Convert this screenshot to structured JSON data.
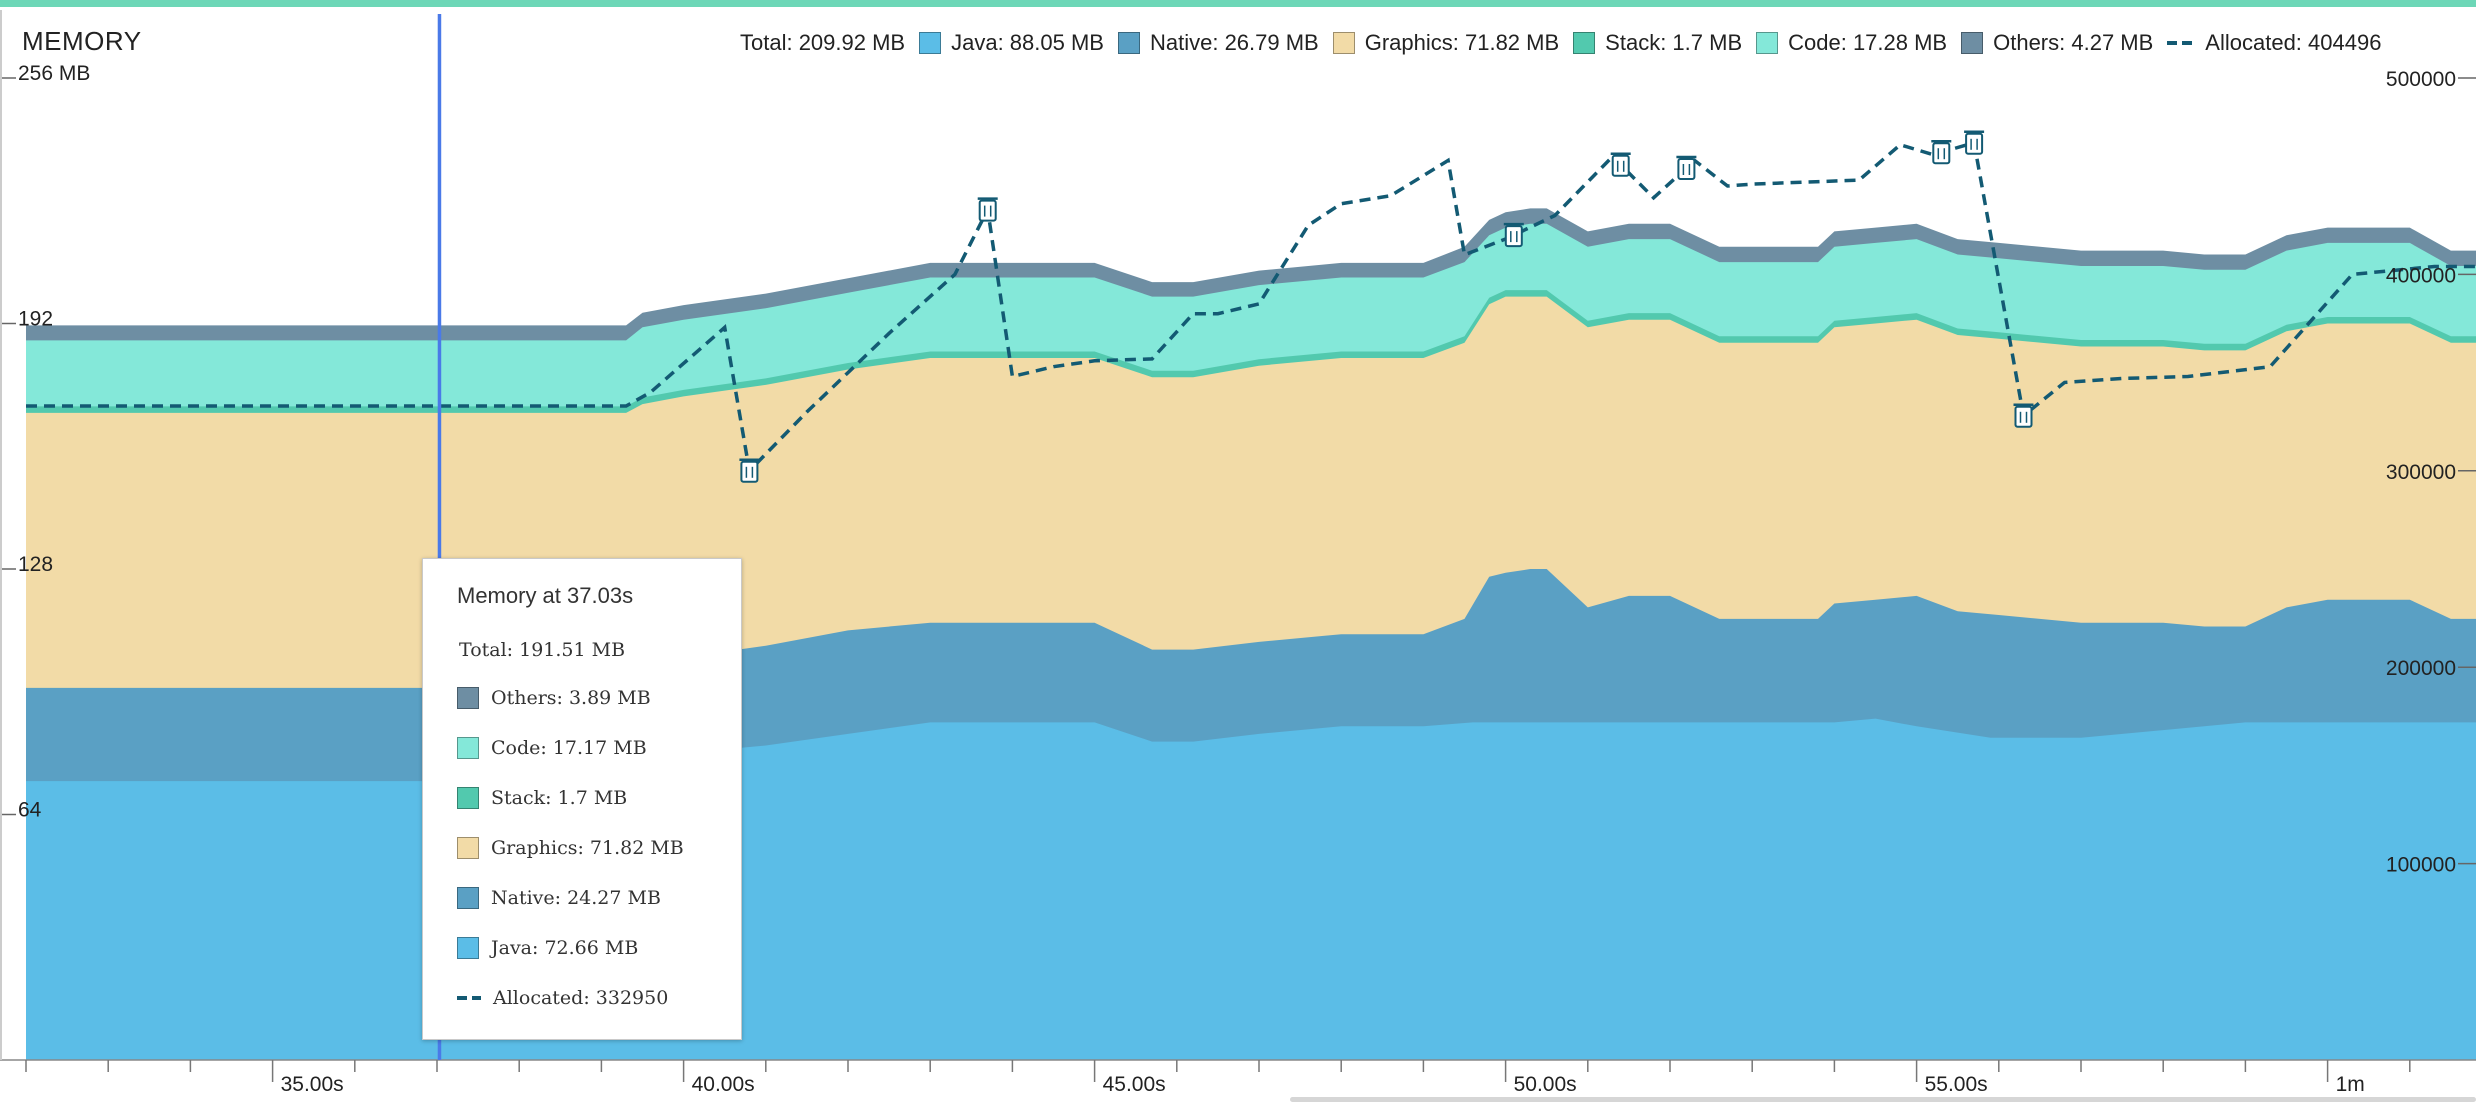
{
  "monitor": {
    "title": "MEMORY"
  },
  "legend": {
    "total": "Total: 209.92 MB",
    "items": [
      {
        "key": "java",
        "text": "Java: 88.05 MB",
        "color": "#5bbde7"
      },
      {
        "key": "native",
        "text": "Native: 26.79 MB",
        "color": "#5aa0c4"
      },
      {
        "key": "graphics",
        "text": "Graphics: 71.82 MB",
        "color": "#f2dba7"
      },
      {
        "key": "stack",
        "text": "Stack:  1.7 MB",
        "color": "#52c9ae"
      },
      {
        "key": "code",
        "text": "Code: 17.28 MB",
        "color": "#84e8d9"
      },
      {
        "key": "others",
        "text": "Others: 4.27 MB",
        "color": "#6e8ea3"
      }
    ],
    "allocated": "Allocated: 404496"
  },
  "tooltip": {
    "title": "Memory at 37.03s",
    "total": "Total: 191.51 MB",
    "items": [
      {
        "text": "Others: 3.89 MB",
        "color": "#6e8ea3"
      },
      {
        "text": "Code: 17.17 MB",
        "color": "#84e8d9"
      },
      {
        "text": "Stack: 1.7 MB",
        "color": "#52c9ae"
      },
      {
        "text": "Graphics: 71.82 MB",
        "color": "#f2dba7"
      },
      {
        "text": "Native: 24.27 MB",
        "color": "#5aa0c4"
      },
      {
        "text": "Java: 72.66 MB",
        "color": "#5bbde7"
      }
    ],
    "allocated": "Allocated: 332950"
  },
  "chart_data": {
    "type": "area",
    "x_unit": "s",
    "xlim": [
      32.0,
      62.0
    ],
    "ylim_mb": [
      0,
      256
    ],
    "ylim_alloc": [
      0,
      500000
    ],
    "left_ticks": [
      {
        "v": 256,
        "label": "256 MB"
      },
      {
        "v": 192,
        "label": "192"
      },
      {
        "v": 128,
        "label": "128"
      },
      {
        "v": 64,
        "label": "64"
      }
    ],
    "right_ticks": [
      {
        "v": 500000,
        "label": "500000"
      },
      {
        "v": 400000,
        "label": "400000"
      },
      {
        "v": 300000,
        "label": "300000"
      },
      {
        "v": 200000,
        "label": "200000"
      },
      {
        "v": 100000,
        "label": "100000"
      }
    ],
    "x_ticks": [
      {
        "v": 35,
        "label": "35.00s"
      },
      {
        "v": 40,
        "label": "40.00s"
      },
      {
        "v": 45,
        "label": "45.00s"
      },
      {
        "v": 50,
        "label": "50.00s"
      },
      {
        "v": 55,
        "label": "55.00s"
      },
      {
        "v": 60,
        "label": "1m"
      }
    ],
    "cursor_x": 37.03,
    "series": [
      {
        "name": "Java",
        "color": "#5bbde7",
        "points": [
          [
            32,
            72.7
          ],
          [
            39.3,
            72.7
          ],
          [
            39.5,
            79
          ],
          [
            40,
            80
          ],
          [
            41,
            82
          ],
          [
            42,
            85
          ],
          [
            43,
            88
          ],
          [
            44,
            88
          ],
          [
            45,
            88
          ],
          [
            45.7,
            83
          ],
          [
            46.2,
            83
          ],
          [
            47,
            85
          ],
          [
            48,
            87
          ],
          [
            49,
            87
          ],
          [
            49.6,
            88
          ],
          [
            50,
            88
          ],
          [
            51,
            88
          ],
          [
            52,
            88
          ],
          [
            53,
            88
          ],
          [
            54,
            88
          ],
          [
            54.5,
            89
          ],
          [
            55,
            87
          ],
          [
            55.9,
            84
          ],
          [
            57,
            84
          ],
          [
            58,
            86
          ],
          [
            59,
            88
          ],
          [
            60,
            88
          ],
          [
            61,
            88
          ],
          [
            62,
            88
          ]
        ]
      },
      {
        "name": "Native",
        "color": "#5aa0c4",
        "points": [
          [
            32,
            97
          ],
          [
            39.3,
            97
          ],
          [
            39.5,
            104
          ],
          [
            40,
            105
          ],
          [
            41,
            108
          ],
          [
            42,
            112
          ],
          [
            43,
            114
          ],
          [
            44,
            114
          ],
          [
            45,
            114
          ],
          [
            45.7,
            107
          ],
          [
            46.2,
            107
          ],
          [
            47,
            109
          ],
          [
            48,
            111
          ],
          [
            49,
            111
          ],
          [
            49.5,
            115
          ],
          [
            49.8,
            126
          ],
          [
            50,
            127
          ],
          [
            50.3,
            128
          ],
          [
            50.5,
            128
          ],
          [
            51,
            118
          ],
          [
            51.5,
            121
          ],
          [
            52,
            121
          ],
          [
            52.6,
            115
          ],
          [
            53,
            115
          ],
          [
            53.8,
            115
          ],
          [
            54,
            119
          ],
          [
            54.5,
            120
          ],
          [
            55,
            121
          ],
          [
            55.5,
            117
          ],
          [
            56,
            116
          ],
          [
            57,
            114
          ],
          [
            58,
            114
          ],
          [
            58.5,
            113
          ],
          [
            59,
            113
          ],
          [
            59.5,
            118
          ],
          [
            60,
            120
          ],
          [
            61,
            120
          ],
          [
            61.5,
            115
          ],
          [
            62,
            115
          ]
        ]
      },
      {
        "name": "Graphics",
        "color": "#f2dba7",
        "points": [
          [
            32,
            168.7
          ],
          [
            39.3,
            168.7
          ],
          [
            39.5,
            171
          ],
          [
            40,
            173
          ],
          [
            41,
            176
          ],
          [
            42,
            180
          ],
          [
            43,
            183
          ],
          [
            44,
            183
          ],
          [
            45,
            183
          ],
          [
            45.7,
            178
          ],
          [
            46.2,
            178
          ],
          [
            47,
            181
          ],
          [
            48,
            183
          ],
          [
            49,
            183
          ],
          [
            49.5,
            187
          ],
          [
            49.8,
            197
          ],
          [
            50,
            199
          ],
          [
            50.3,
            199
          ],
          [
            50.5,
            199
          ],
          [
            51,
            191
          ],
          [
            51.5,
            193
          ],
          [
            52,
            193
          ],
          [
            52.6,
            187
          ],
          [
            53,
            187
          ],
          [
            53.8,
            187
          ],
          [
            54,
            191
          ],
          [
            54.5,
            192
          ],
          [
            55,
            193
          ],
          [
            55.5,
            189
          ],
          [
            56,
            188
          ],
          [
            57,
            186
          ],
          [
            58,
            186
          ],
          [
            58.5,
            185
          ],
          [
            59,
            185
          ],
          [
            59.5,
            190
          ],
          [
            60,
            192
          ],
          [
            61,
            192
          ],
          [
            61.5,
            187
          ],
          [
            62,
            187
          ]
        ]
      },
      {
        "name": "Stack",
        "color": "#52c9ae",
        "points": [
          [
            32,
            170.4
          ],
          [
            39.3,
            170.4
          ],
          [
            39.5,
            172.7
          ],
          [
            40,
            174.7
          ],
          [
            41,
            177.7
          ],
          [
            42,
            181.7
          ],
          [
            43,
            184.7
          ],
          [
            44,
            184.7
          ],
          [
            45,
            184.7
          ],
          [
            45.7,
            179.7
          ],
          [
            46.2,
            179.7
          ],
          [
            47,
            182.7
          ],
          [
            48,
            184.7
          ],
          [
            49,
            184.7
          ],
          [
            49.5,
            188.7
          ],
          [
            49.8,
            198.7
          ],
          [
            50,
            200.7
          ],
          [
            50.3,
            200.7
          ],
          [
            50.5,
            200.7
          ],
          [
            51,
            192.7
          ],
          [
            51.5,
            194.7
          ],
          [
            52,
            194.7
          ],
          [
            52.6,
            188.7
          ],
          [
            53,
            188.7
          ],
          [
            53.8,
            188.7
          ],
          [
            54,
            192.7
          ],
          [
            54.5,
            193.7
          ],
          [
            55,
            194.7
          ],
          [
            55.5,
            190.7
          ],
          [
            56,
            189.7
          ],
          [
            57,
            187.7
          ],
          [
            58,
            187.7
          ],
          [
            58.5,
            186.7
          ],
          [
            59,
            186.7
          ],
          [
            59.5,
            191.7
          ],
          [
            60,
            193.7
          ],
          [
            61,
            193.7
          ],
          [
            61.5,
            188.7
          ],
          [
            62,
            188.7
          ]
        ]
      },
      {
        "name": "Code",
        "color": "#84e8d9",
        "points": [
          [
            32,
            187.6
          ],
          [
            39.3,
            187.6
          ],
          [
            39.5,
            191
          ],
          [
            40,
            193
          ],
          [
            41,
            196
          ],
          [
            42,
            200
          ],
          [
            43,
            204
          ],
          [
            44,
            204
          ],
          [
            45,
            204
          ],
          [
            45.7,
            199
          ],
          [
            46.2,
            199
          ],
          [
            47,
            202
          ],
          [
            48,
            204
          ],
          [
            49,
            204
          ],
          [
            49.5,
            208
          ],
          [
            49.8,
            215
          ],
          [
            50,
            217
          ],
          [
            50.3,
            218
          ],
          [
            50.5,
            218
          ],
          [
            51,
            212
          ],
          [
            51.5,
            214
          ],
          [
            52,
            214
          ],
          [
            52.6,
            208
          ],
          [
            53,
            208
          ],
          [
            53.8,
            208
          ],
          [
            54,
            212
          ],
          [
            54.5,
            213
          ],
          [
            55,
            214
          ],
          [
            55.5,
            210
          ],
          [
            56,
            209
          ],
          [
            57,
            207
          ],
          [
            58,
            207
          ],
          [
            58.5,
            206
          ],
          [
            59,
            206
          ],
          [
            59.5,
            211
          ],
          [
            60,
            213
          ],
          [
            61,
            213
          ],
          [
            61.5,
            207
          ],
          [
            62,
            207
          ]
        ]
      },
      {
        "name": "Others",
        "color": "#6e8ea3",
        "points": [
          [
            32,
            191.5
          ],
          [
            39.3,
            191.5
          ],
          [
            39.5,
            194.8
          ],
          [
            40,
            196.8
          ],
          [
            41,
            199.8
          ],
          [
            42,
            203.8
          ],
          [
            43,
            207.8
          ],
          [
            44,
            207.8
          ],
          [
            45,
            207.8
          ],
          [
            45.7,
            202.8
          ],
          [
            46.2,
            202.8
          ],
          [
            47,
            205.8
          ],
          [
            48,
            207.8
          ],
          [
            49,
            207.8
          ],
          [
            49.5,
            212
          ],
          [
            49.8,
            219
          ],
          [
            50,
            221
          ],
          [
            50.3,
            222
          ],
          [
            50.5,
            222
          ],
          [
            51,
            216
          ],
          [
            51.5,
            218
          ],
          [
            52,
            218
          ],
          [
            52.6,
            212
          ],
          [
            53,
            212
          ],
          [
            53.8,
            212
          ],
          [
            54,
            216
          ],
          [
            54.5,
            217
          ],
          [
            55,
            218
          ],
          [
            55.5,
            214
          ],
          [
            56,
            213
          ],
          [
            57,
            211
          ],
          [
            58,
            211
          ],
          [
            58.5,
            210
          ],
          [
            59,
            210
          ],
          [
            59.5,
            215
          ],
          [
            60,
            217
          ],
          [
            61,
            217
          ],
          [
            61.5,
            211
          ],
          [
            62,
            211
          ]
        ]
      }
    ],
    "allocated": {
      "name": "Allocated",
      "color": "#135a73",
      "points": [
        [
          32,
          333000
        ],
        [
          39.3,
          333000
        ],
        [
          39.6,
          340000
        ],
        [
          40.5,
          373000
        ],
        [
          40.8,
          300000
        ],
        [
          41.5,
          330000
        ],
        [
          42,
          350000
        ],
        [
          42.5,
          370000
        ],
        [
          43.3,
          400000
        ],
        [
          43.7,
          433000
        ],
        [
          44,
          348000
        ],
        [
          44.5,
          353000
        ],
        [
          45,
          356000
        ],
        [
          45.7,
          357000
        ],
        [
          46.2,
          380000
        ],
        [
          46.5,
          380000
        ],
        [
          47,
          385000
        ],
        [
          47.6,
          425000
        ],
        [
          48,
          436000
        ],
        [
          48.6,
          440000
        ],
        [
          49.3,
          458000
        ],
        [
          49.5,
          410000
        ],
        [
          50,
          418000
        ],
        [
          50.6,
          430000
        ],
        [
          51.3,
          460000
        ],
        [
          51.8,
          439000
        ],
        [
          52.3,
          458000
        ],
        [
          52.7,
          445000
        ],
        [
          53,
          446000
        ],
        [
          54.3,
          448000
        ],
        [
          54.8,
          466000
        ],
        [
          55.2,
          461000
        ],
        [
          55.7,
          467000
        ],
        [
          56.3,
          328000
        ],
        [
          56.8,
          345000
        ],
        [
          57.5,
          347000
        ],
        [
          58.3,
          348000
        ],
        [
          59.3,
          353000
        ],
        [
          60.3,
          400000
        ],
        [
          61.3,
          404000
        ],
        [
          62,
          404000
        ]
      ]
    },
    "gc_markers": [
      40.8,
      43.7,
      50.1,
      51.4,
      52.2,
      55.3,
      55.7,
      56.3
    ]
  }
}
